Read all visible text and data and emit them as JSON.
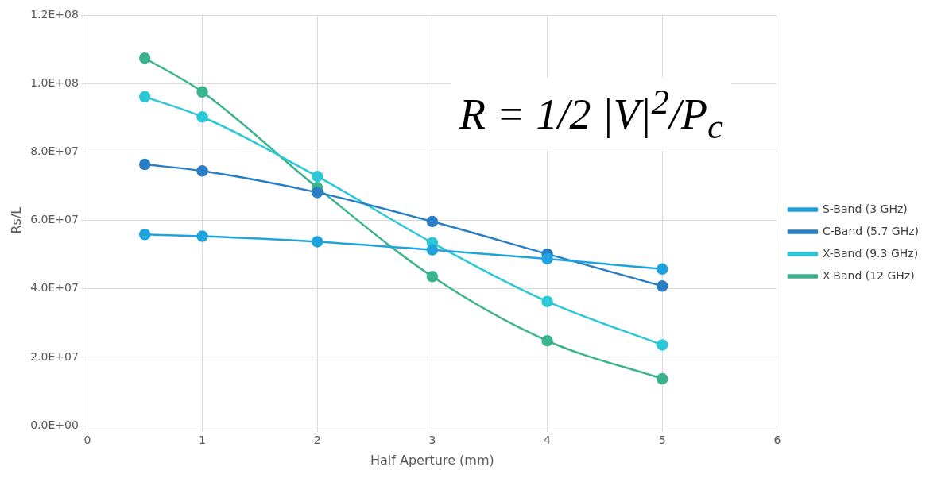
{
  "chart_data": {
    "type": "line",
    "xlabel": "Half Aperture (mm)",
    "ylabel": "Rs/L",
    "x": [
      0.5,
      1,
      2,
      3,
      4,
      5
    ],
    "series": [
      {
        "name": "S-Band (3 GHz)",
        "color": "#1fa3dd",
        "values": [
          55900000.0,
          55400000.0,
          53800000.0,
          51400000.0,
          48800000.0,
          45800000.0
        ]
      },
      {
        "name": "C-Band (5.7 GHz)",
        "color": "#2a7fc4",
        "values": [
          76400000.0,
          74500000.0,
          68200000.0,
          59700000.0,
          50200000.0,
          40800000.0
        ]
      },
      {
        "name": "X-Band (9.3 GHz)",
        "color": "#2bc8d8",
        "values": [
          96200000.0,
          90300000.0,
          72900000.0,
          53500000.0,
          36300000.0,
          23600000.0
        ]
      },
      {
        "name": "X-Band (12 GHz)",
        "color": "#3bb38e",
        "values": [
          107500000.0,
          97600000.0,
          69600000.0,
          43600000.0,
          24800000.0,
          13700000.0
        ]
      }
    ],
    "xlim": [
      0,
      6
    ],
    "xticks": [
      0,
      1,
      2,
      3,
      4,
      5,
      6
    ],
    "ylim": [
      0,
      120000000.0
    ],
    "yticks": [
      {
        "value": 0,
        "label": "0.0E+00"
      },
      {
        "value": 20000000.0,
        "label": "2.0E+07"
      },
      {
        "value": 40000000.0,
        "label": "4.0E+07"
      },
      {
        "value": 60000000.0,
        "label": "6.0E+07"
      },
      {
        "value": 80000000.0,
        "label": "8.0E+07"
      },
      {
        "value": 100000000.0,
        "label": "1.0E+08"
      },
      {
        "value": 120000000.0,
        "label": "1.2E+08"
      }
    ],
    "grid": true,
    "legend": "right",
    "marker": "circle",
    "line_style": "solid",
    "annotations": [
      "R = 1/2 |V|$^{2}$/P$_{c}$"
    ]
  }
}
